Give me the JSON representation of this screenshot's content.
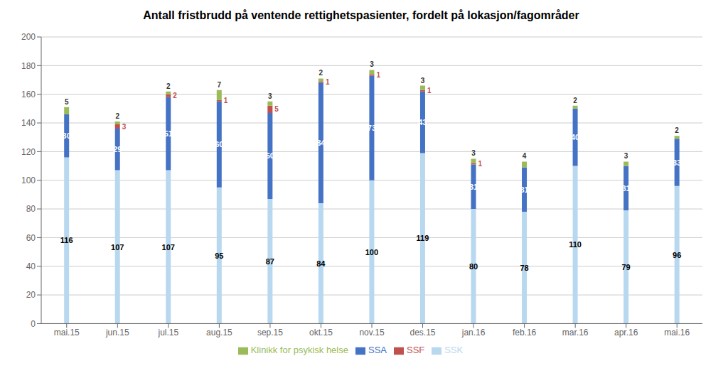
{
  "chart_data": {
    "type": "bar",
    "title": "Antall fristbrudd på ventende rettighetspasienter, fordelt på lokasjon/fagområder",
    "categories": [
      "mai.15",
      "jun.15",
      "jul.15",
      "aug.15",
      "sep.15",
      "okt.15",
      "nov.15",
      "des.15",
      "jan.16",
      "feb.16",
      "mar.16",
      "apr.16",
      "mai.16"
    ],
    "series": [
      {
        "name": "SSK",
        "color": "#b8d8f0",
        "values": [
          116,
          107,
          107,
          95,
          87,
          84,
          100,
          119,
          80,
          78,
          110,
          79,
          96
        ]
      },
      {
        "name": "SSA",
        "color": "#4472c4",
        "values": [
          30,
          29,
          51,
          60,
          60,
          84,
          73,
          43,
          31,
          31,
          40,
          31,
          33
        ]
      },
      {
        "name": "SSF",
        "color": "#c0504d",
        "values": [
          0,
          3,
          2,
          1,
          5,
          1,
          1,
          1,
          1,
          0,
          0,
          0,
          0
        ]
      },
      {
        "name": "Klinikk for psykisk helse",
        "color": "#9bbb59",
        "values": [
          5,
          2,
          2,
          7,
          3,
          2,
          3,
          3,
          3,
          4,
          2,
          3,
          2
        ]
      }
    ],
    "ylim": [
      0,
      200
    ],
    "yticks": [
      0,
      20,
      40,
      60,
      80,
      100,
      120,
      140,
      160,
      180,
      200
    ],
    "stacked": true,
    "grid": true,
    "data_labels": true,
    "legend": "bottom"
  }
}
